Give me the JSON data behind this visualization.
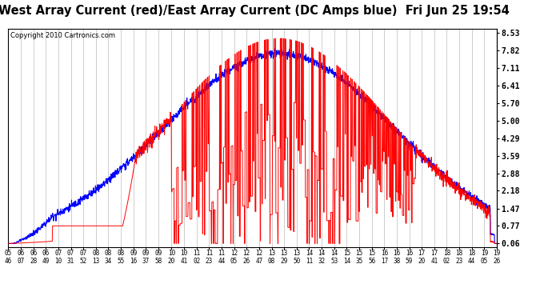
{
  "title": "West Array Current (red)/East Array Current (DC Amps blue)  Fri Jun 25 19:54",
  "copyright": "Copyright 2010 Cartronics.com",
  "background_color": "#ffffff",
  "plot_bg_color": "#ffffff",
  "grid_color": "#aaaaaa",
  "red_color": "#ff0000",
  "blue_color": "#0000ff",
  "yticks": [
    0.06,
    0.77,
    1.47,
    2.18,
    2.88,
    3.59,
    4.29,
    5.0,
    5.7,
    6.41,
    7.11,
    7.82,
    8.53
  ],
  "ylim": [
    -0.1,
    8.7
  ],
  "title_fontsize": 10.5,
  "tick_fontsize": 5.5,
  "copyright_fontsize": 6,
  "tick_times_str": [
    "05:46",
    "06:07",
    "06:28",
    "06:49",
    "07:10",
    "07:31",
    "07:52",
    "08:13",
    "08:34",
    "08:55",
    "09:16",
    "09:37",
    "09:58",
    "10:20",
    "10:41",
    "11:02",
    "11:23",
    "11:44",
    "12:05",
    "12:26",
    "12:47",
    "13:08",
    "13:29",
    "13:50",
    "14:11",
    "14:32",
    "14:53",
    "15:14",
    "15:35",
    "15:56",
    "16:17",
    "16:38",
    "16:59",
    "17:20",
    "17:41",
    "18:02",
    "18:23",
    "18:44",
    "19:05",
    "19:26"
  ]
}
